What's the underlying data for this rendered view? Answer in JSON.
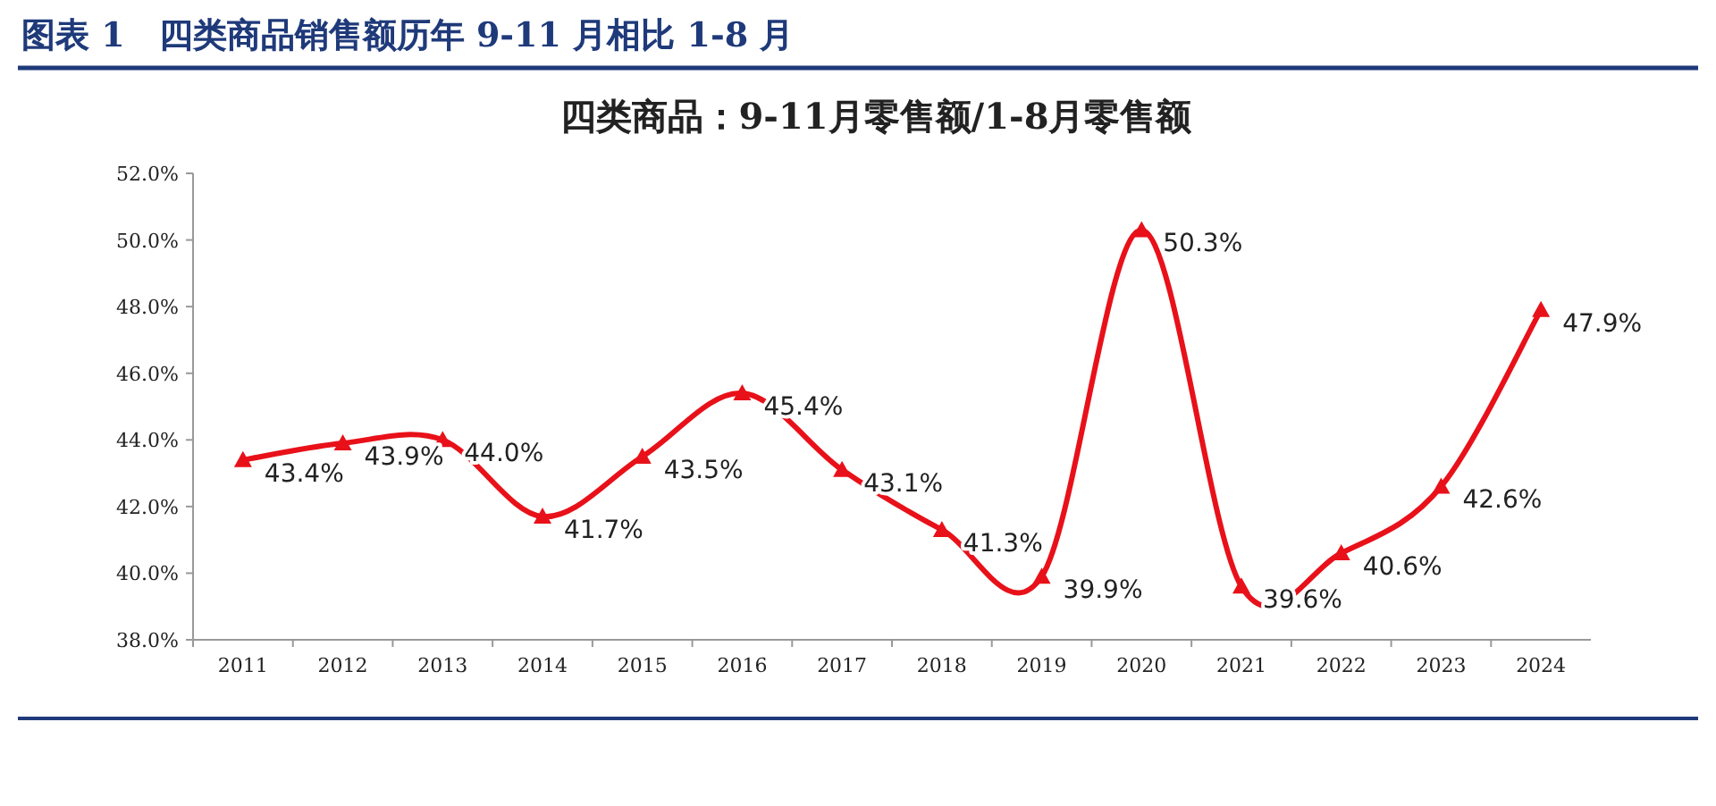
{
  "chart_data": {
    "type": "line",
    "title": "图表 1　四类商品销售额历年 9-11 月相比 1-8 月",
    "subtitle": "四类商品：9-11月零售额/1-8月零售额",
    "categories": [
      "2011",
      "2012",
      "2013",
      "2014",
      "2015",
      "2016",
      "2017",
      "2018",
      "2019",
      "2020",
      "2021",
      "2022",
      "2023",
      "2024"
    ],
    "series": [
      {
        "color": "#e8111a",
        "values": [
          43.4,
          43.9,
          44.0,
          41.7,
          43.5,
          45.4,
          43.1,
          41.3,
          39.9,
          50.3,
          39.6,
          40.6,
          42.6,
          47.9
        ],
        "value_labels": [
          "43.4%",
          "43.9%",
          "44.0%",
          "41.7%",
          "43.5%",
          "45.4%",
          "43.1%",
          "41.3%",
          "39.9%",
          "50.3%",
          "39.6%",
          "40.6%",
          "42.6%",
          "47.9%"
        ]
      }
    ],
    "ylim": [
      38,
      52
    ],
    "yticks": [
      {
        "value": 38,
        "label": "38.0%"
      },
      {
        "value": 40,
        "label": "40.0%"
      },
      {
        "value": 42,
        "label": "42.0%"
      },
      {
        "value": 44,
        "label": "44.0%"
      },
      {
        "value": 46,
        "label": "46.0%"
      },
      {
        "value": 48,
        "label": "48.0%"
      },
      {
        "value": 50,
        "label": "50.0%"
      },
      {
        "value": 52,
        "label": "52.0%"
      }
    ],
    "marker": "triangle",
    "line_style": "solid"
  }
}
